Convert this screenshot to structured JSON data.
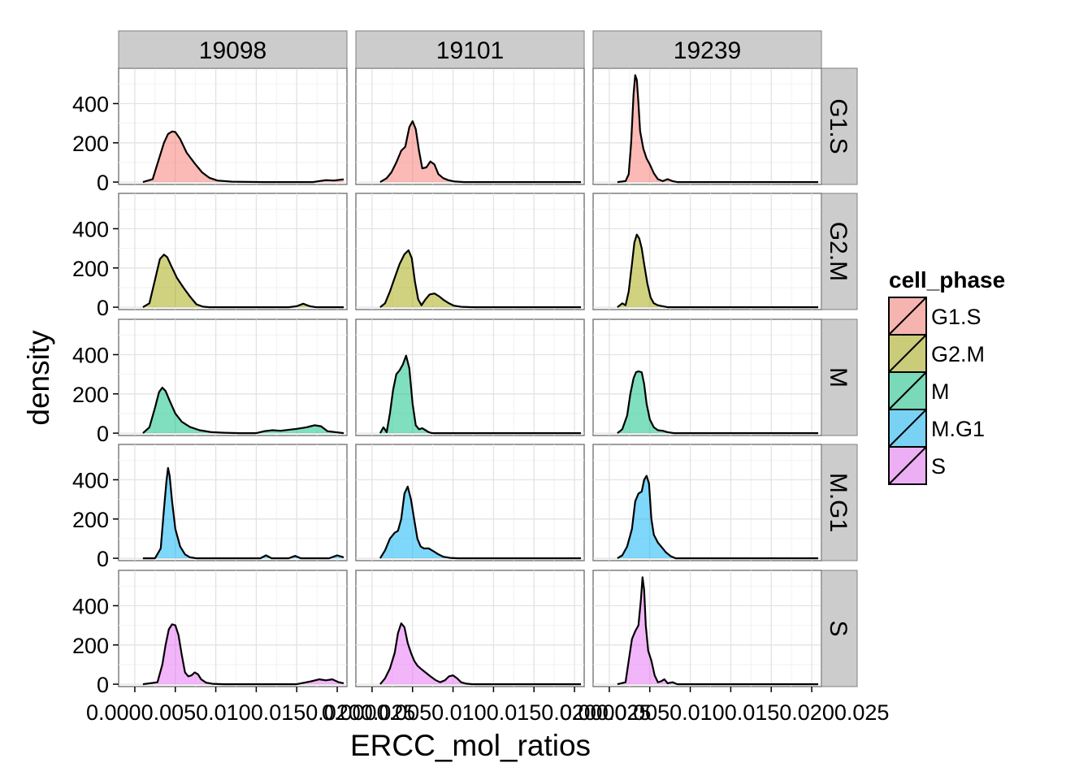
{
  "chart_data": {
    "type": "area",
    "facets": {
      "columns": [
        "19098",
        "19101",
        "19239"
      ],
      "rows": [
        "G1.S",
        "G2.M",
        "M",
        "M.G1",
        "S"
      ]
    },
    "xlabel": "ERCC_mol_ratios",
    "ylabel": "density",
    "xlim": [
      -0.002,
      0.0262
    ],
    "ylim": [
      -12,
      580
    ],
    "y_ticks": [
      0,
      200,
      400
    ],
    "y_tick_labels": [
      "0",
      "200",
      "400"
    ],
    "x_tick_labels_overlapping": [
      "0.0000.0050.0100.0150.0200.025",
      "0.0000.0050.0100.0150.0200.025",
      "0.0000.0050.0100.0150.0200.025"
    ],
    "grid": true,
    "legend": {
      "title": "cell_phase",
      "position": "right",
      "entries": [
        {
          "label": "G1.S",
          "color": "#F8766D"
        },
        {
          "label": "G2.M",
          "color": "#A3A500"
        },
        {
          "label": "M",
          "color": "#00BF7D"
        },
        {
          "label": "M.G1",
          "color": "#00B0F6"
        },
        {
          "label": "S",
          "color": "#E76BF3"
        }
      ]
    },
    "series": [
      {
        "column": "19098",
        "row": "G1.S",
        "x": [
          0.001,
          0.0022,
          0.003,
          0.0036,
          0.0041,
          0.0046,
          0.005,
          0.0056,
          0.0064,
          0.0074,
          0.0083,
          0.0092,
          0.0102,
          0.012,
          0.016,
          0.02,
          0.022,
          0.0236,
          0.0246,
          0.0258
        ],
        "y": [
          0,
          15,
          120,
          200,
          245,
          258,
          255,
          220,
          150,
          95,
          50,
          22,
          8,
          2,
          0,
          0,
          0,
          10,
          8,
          14
        ]
      },
      {
        "column": "19098",
        "row": "G2.M",
        "x": [
          0.001,
          0.0018,
          0.0025,
          0.0031,
          0.0036,
          0.004,
          0.0045,
          0.0052,
          0.006,
          0.0068,
          0.0076,
          0.0084,
          0.0092,
          0.011,
          0.015,
          0.019,
          0.02,
          0.0208,
          0.0216,
          0.0224,
          0.0258
        ],
        "y": [
          0,
          20,
          140,
          245,
          268,
          255,
          210,
          150,
          100,
          55,
          15,
          3,
          0,
          0,
          0,
          0,
          5,
          18,
          5,
          0,
          0
        ]
      },
      {
        "column": "19098",
        "row": "M",
        "x": [
          0.001,
          0.0018,
          0.0025,
          0.003,
          0.0034,
          0.0038,
          0.0043,
          0.005,
          0.0058,
          0.0068,
          0.008,
          0.0095,
          0.011,
          0.013,
          0.015,
          0.016,
          0.017,
          0.018,
          0.02,
          0.0212,
          0.0222,
          0.023,
          0.0238,
          0.0258
        ],
        "y": [
          0,
          30,
          130,
          210,
          232,
          215,
          165,
          100,
          58,
          32,
          15,
          5,
          2,
          0,
          0,
          10,
          15,
          12,
          22,
          30,
          40,
          35,
          10,
          0
        ]
      },
      {
        "column": "19098",
        "row": "M.G1",
        "x": [
          0.001,
          0.0025,
          0.0032,
          0.0036,
          0.0039,
          0.0041,
          0.0043,
          0.0046,
          0.005,
          0.0056,
          0.0062,
          0.0068,
          0.0076,
          0.009,
          0.013,
          0.0155,
          0.0162,
          0.0169,
          0.0176,
          0.019,
          0.0198,
          0.0205,
          0.0212,
          0.0219,
          0.024,
          0.025,
          0.0258
        ],
        "y": [
          0,
          0,
          50,
          250,
          390,
          460,
          420,
          290,
          150,
          60,
          20,
          5,
          0,
          0,
          0,
          0,
          15,
          0,
          0,
          0,
          12,
          0,
          0,
          0,
          0,
          15,
          5
        ]
      },
      {
        "column": "19098",
        "row": "S",
        "x": [
          0.001,
          0.0028,
          0.0034,
          0.0038,
          0.0042,
          0.0046,
          0.005,
          0.0054,
          0.0058,
          0.0062,
          0.0066,
          0.007,
          0.0074,
          0.0078,
          0.0082,
          0.0088,
          0.0096,
          0.011,
          0.015,
          0.02,
          0.0218,
          0.0228,
          0.0236,
          0.0244,
          0.0252,
          0.0258
        ],
        "y": [
          0,
          10,
          100,
          200,
          280,
          305,
          300,
          250,
          150,
          60,
          40,
          45,
          60,
          50,
          25,
          8,
          2,
          0,
          0,
          0,
          15,
          25,
          20,
          25,
          10,
          5
        ]
      },
      {
        "column": "19101",
        "row": "G1.S",
        "x": [
          0.001,
          0.0018,
          0.0024,
          0.003,
          0.0036,
          0.0041,
          0.0046,
          0.005,
          0.0054,
          0.0058,
          0.0062,
          0.0067,
          0.0072,
          0.0077,
          0.0082,
          0.0088,
          0.0094,
          0.0102,
          0.0114,
          0.014,
          0.0258
        ],
        "y": [
          0,
          20,
          50,
          100,
          160,
          180,
          280,
          310,
          270,
          160,
          70,
          75,
          105,
          90,
          40,
          20,
          10,
          3,
          0,
          0,
          0
        ]
      },
      {
        "column": "19101",
        "row": "G2.M",
        "x": [
          0.001,
          0.0016,
          0.0022,
          0.0028,
          0.0034,
          0.004,
          0.0045,
          0.0049,
          0.0053,
          0.0057,
          0.0061,
          0.0066,
          0.0071,
          0.0077,
          0.0083,
          0.0089,
          0.0095,
          0.0101,
          0.011,
          0.0125,
          0.0258
        ],
        "y": [
          0,
          20,
          80,
          150,
          220,
          270,
          290,
          250,
          130,
          40,
          10,
          40,
          65,
          70,
          55,
          35,
          20,
          8,
          2,
          0,
          0
        ]
      },
      {
        "column": "19101",
        "row": "M",
        "x": [
          0.001,
          0.0014,
          0.0018,
          0.0022,
          0.0026,
          0.003,
          0.0034,
          0.0038,
          0.0042,
          0.0046,
          0.005,
          0.0054,
          0.0058,
          0.0062,
          0.0066,
          0.007,
          0.0074,
          0.0082,
          0.0258
        ],
        "y": [
          0,
          30,
          5,
          100,
          220,
          300,
          320,
          350,
          395,
          330,
          150,
          40,
          20,
          25,
          15,
          5,
          0,
          0,
          0
        ]
      },
      {
        "column": "19101",
        "row": "M.G1",
        "x": [
          0.001,
          0.0016,
          0.0022,
          0.0028,
          0.0032,
          0.0036,
          0.004,
          0.0044,
          0.0048,
          0.0052,
          0.0056,
          0.006,
          0.0064,
          0.007,
          0.0076,
          0.0082,
          0.0088,
          0.0096,
          0.0106,
          0.012,
          0.0258
        ],
        "y": [
          0,
          40,
          100,
          130,
          140,
          200,
          330,
          365,
          300,
          200,
          100,
          60,
          50,
          50,
          35,
          20,
          8,
          2,
          0,
          0,
          0
        ]
      },
      {
        "column": "19101",
        "row": "S",
        "x": [
          0.001,
          0.0016,
          0.0022,
          0.0028,
          0.0032,
          0.0036,
          0.004,
          0.0044,
          0.0048,
          0.0052,
          0.0056,
          0.006,
          0.0066,
          0.0072,
          0.0078,
          0.0084,
          0.009,
          0.0095,
          0.01,
          0.0105,
          0.011,
          0.0116,
          0.0124,
          0.0258
        ],
        "y": [
          0,
          30,
          80,
          160,
          260,
          310,
          290,
          210,
          160,
          120,
          95,
          80,
          60,
          40,
          22,
          10,
          20,
          40,
          45,
          30,
          10,
          3,
          0,
          0
        ]
      },
      {
        "column": "19239",
        "row": "G1.S",
        "x": [
          0.001,
          0.002,
          0.0024,
          0.0027,
          0.003,
          0.0032,
          0.0034,
          0.0036,
          0.0038,
          0.0042,
          0.0046,
          0.005,
          0.0055,
          0.006,
          0.0066,
          0.0072,
          0.0078,
          0.0084,
          0.009,
          0.0258
        ],
        "y": [
          0,
          5,
          40,
          200,
          450,
          545,
          520,
          400,
          260,
          170,
          120,
          90,
          45,
          15,
          5,
          15,
          5,
          0,
          0,
          0
        ]
      },
      {
        "column": "19239",
        "row": "G2.M",
        "x": [
          0.001,
          0.0016,
          0.002,
          0.0024,
          0.0028,
          0.0031,
          0.0034,
          0.0037,
          0.004,
          0.0043,
          0.0047,
          0.0051,
          0.0055,
          0.006,
          0.0066,
          0.0072,
          0.008,
          0.0258
        ],
        "y": [
          0,
          20,
          10,
          80,
          220,
          330,
          370,
          350,
          300,
          220,
          120,
          50,
          20,
          10,
          5,
          0,
          0,
          0
        ]
      },
      {
        "column": "19239",
        "row": "M",
        "x": [
          0.001,
          0.0016,
          0.0022,
          0.0026,
          0.003,
          0.0033,
          0.0036,
          0.004,
          0.0043,
          0.0046,
          0.005,
          0.0055,
          0.006,
          0.0066,
          0.0072,
          0.008,
          0.0258
        ],
        "y": [
          0,
          20,
          90,
          200,
          280,
          310,
          315,
          310,
          250,
          150,
          70,
          30,
          15,
          12,
          5,
          0,
          0
        ]
      },
      {
        "column": "19239",
        "row": "M.G1",
        "x": [
          0.001,
          0.0016,
          0.0022,
          0.0028,
          0.0032,
          0.0036,
          0.004,
          0.0043,
          0.0046,
          0.0049,
          0.0052,
          0.0055,
          0.006,
          0.0065,
          0.007,
          0.0076,
          0.0082,
          0.0258
        ],
        "y": [
          0,
          15,
          60,
          150,
          290,
          330,
          340,
          400,
          420,
          380,
          200,
          120,
          80,
          55,
          30,
          10,
          0,
          0
        ]
      },
      {
        "column": "19239",
        "row": "S",
        "x": [
          0.001,
          0.002,
          0.0024,
          0.0028,
          0.0032,
          0.0036,
          0.0039,
          0.0041,
          0.0043,
          0.0045,
          0.0048,
          0.0052,
          0.0056,
          0.006,
          0.0064,
          0.0068,
          0.0072,
          0.0078,
          0.0084,
          0.0258
        ],
        "y": [
          0,
          10,
          120,
          230,
          270,
          300,
          430,
          545,
          480,
          300,
          170,
          120,
          45,
          10,
          15,
          25,
          5,
          10,
          0,
          0
        ]
      }
    ]
  }
}
